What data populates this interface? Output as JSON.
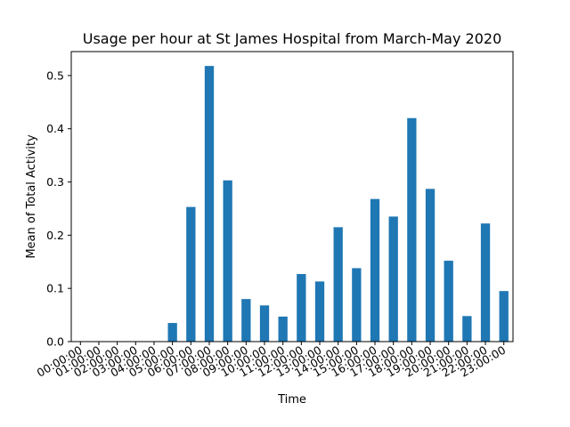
{
  "chart_data": {
    "type": "bar",
    "title": "Usage per hour at  St James Hospital from March-May 2020",
    "xlabel": "Time",
    "ylabel": "Mean of Total Activity",
    "ylim": [
      0,
      0.545
    ],
    "yticks": [
      "0.0",
      "0.1",
      "0.2",
      "0.3",
      "0.4",
      "0.5"
    ],
    "grid": false,
    "legend": "none",
    "bar_color": "#1f77b4",
    "categories": [
      "00:00:00",
      "01:00:00",
      "02:00:00",
      "03:00:00",
      "04:00:00",
      "05:00:00",
      "06:00:00",
      "07:00:00",
      "08:00:00",
      "09:00:00",
      "10:00:00",
      "11:00:00",
      "12:00:00",
      "13:00:00",
      "14:00:00",
      "15:00:00",
      "16:00:00",
      "17:00:00",
      "18:00:00",
      "19:00:00",
      "20:00:00",
      "21:00:00",
      "22:00:00",
      "23:00:00"
    ],
    "values": [
      0.0,
      0.0,
      0.0,
      0.0,
      0.0,
      0.035,
      0.253,
      0.518,
      0.303,
      0.08,
      0.068,
      0.047,
      0.127,
      0.113,
      0.215,
      0.138,
      0.268,
      0.235,
      0.42,
      0.287,
      0.152,
      0.048,
      0.222,
      0.095
    ]
  }
}
